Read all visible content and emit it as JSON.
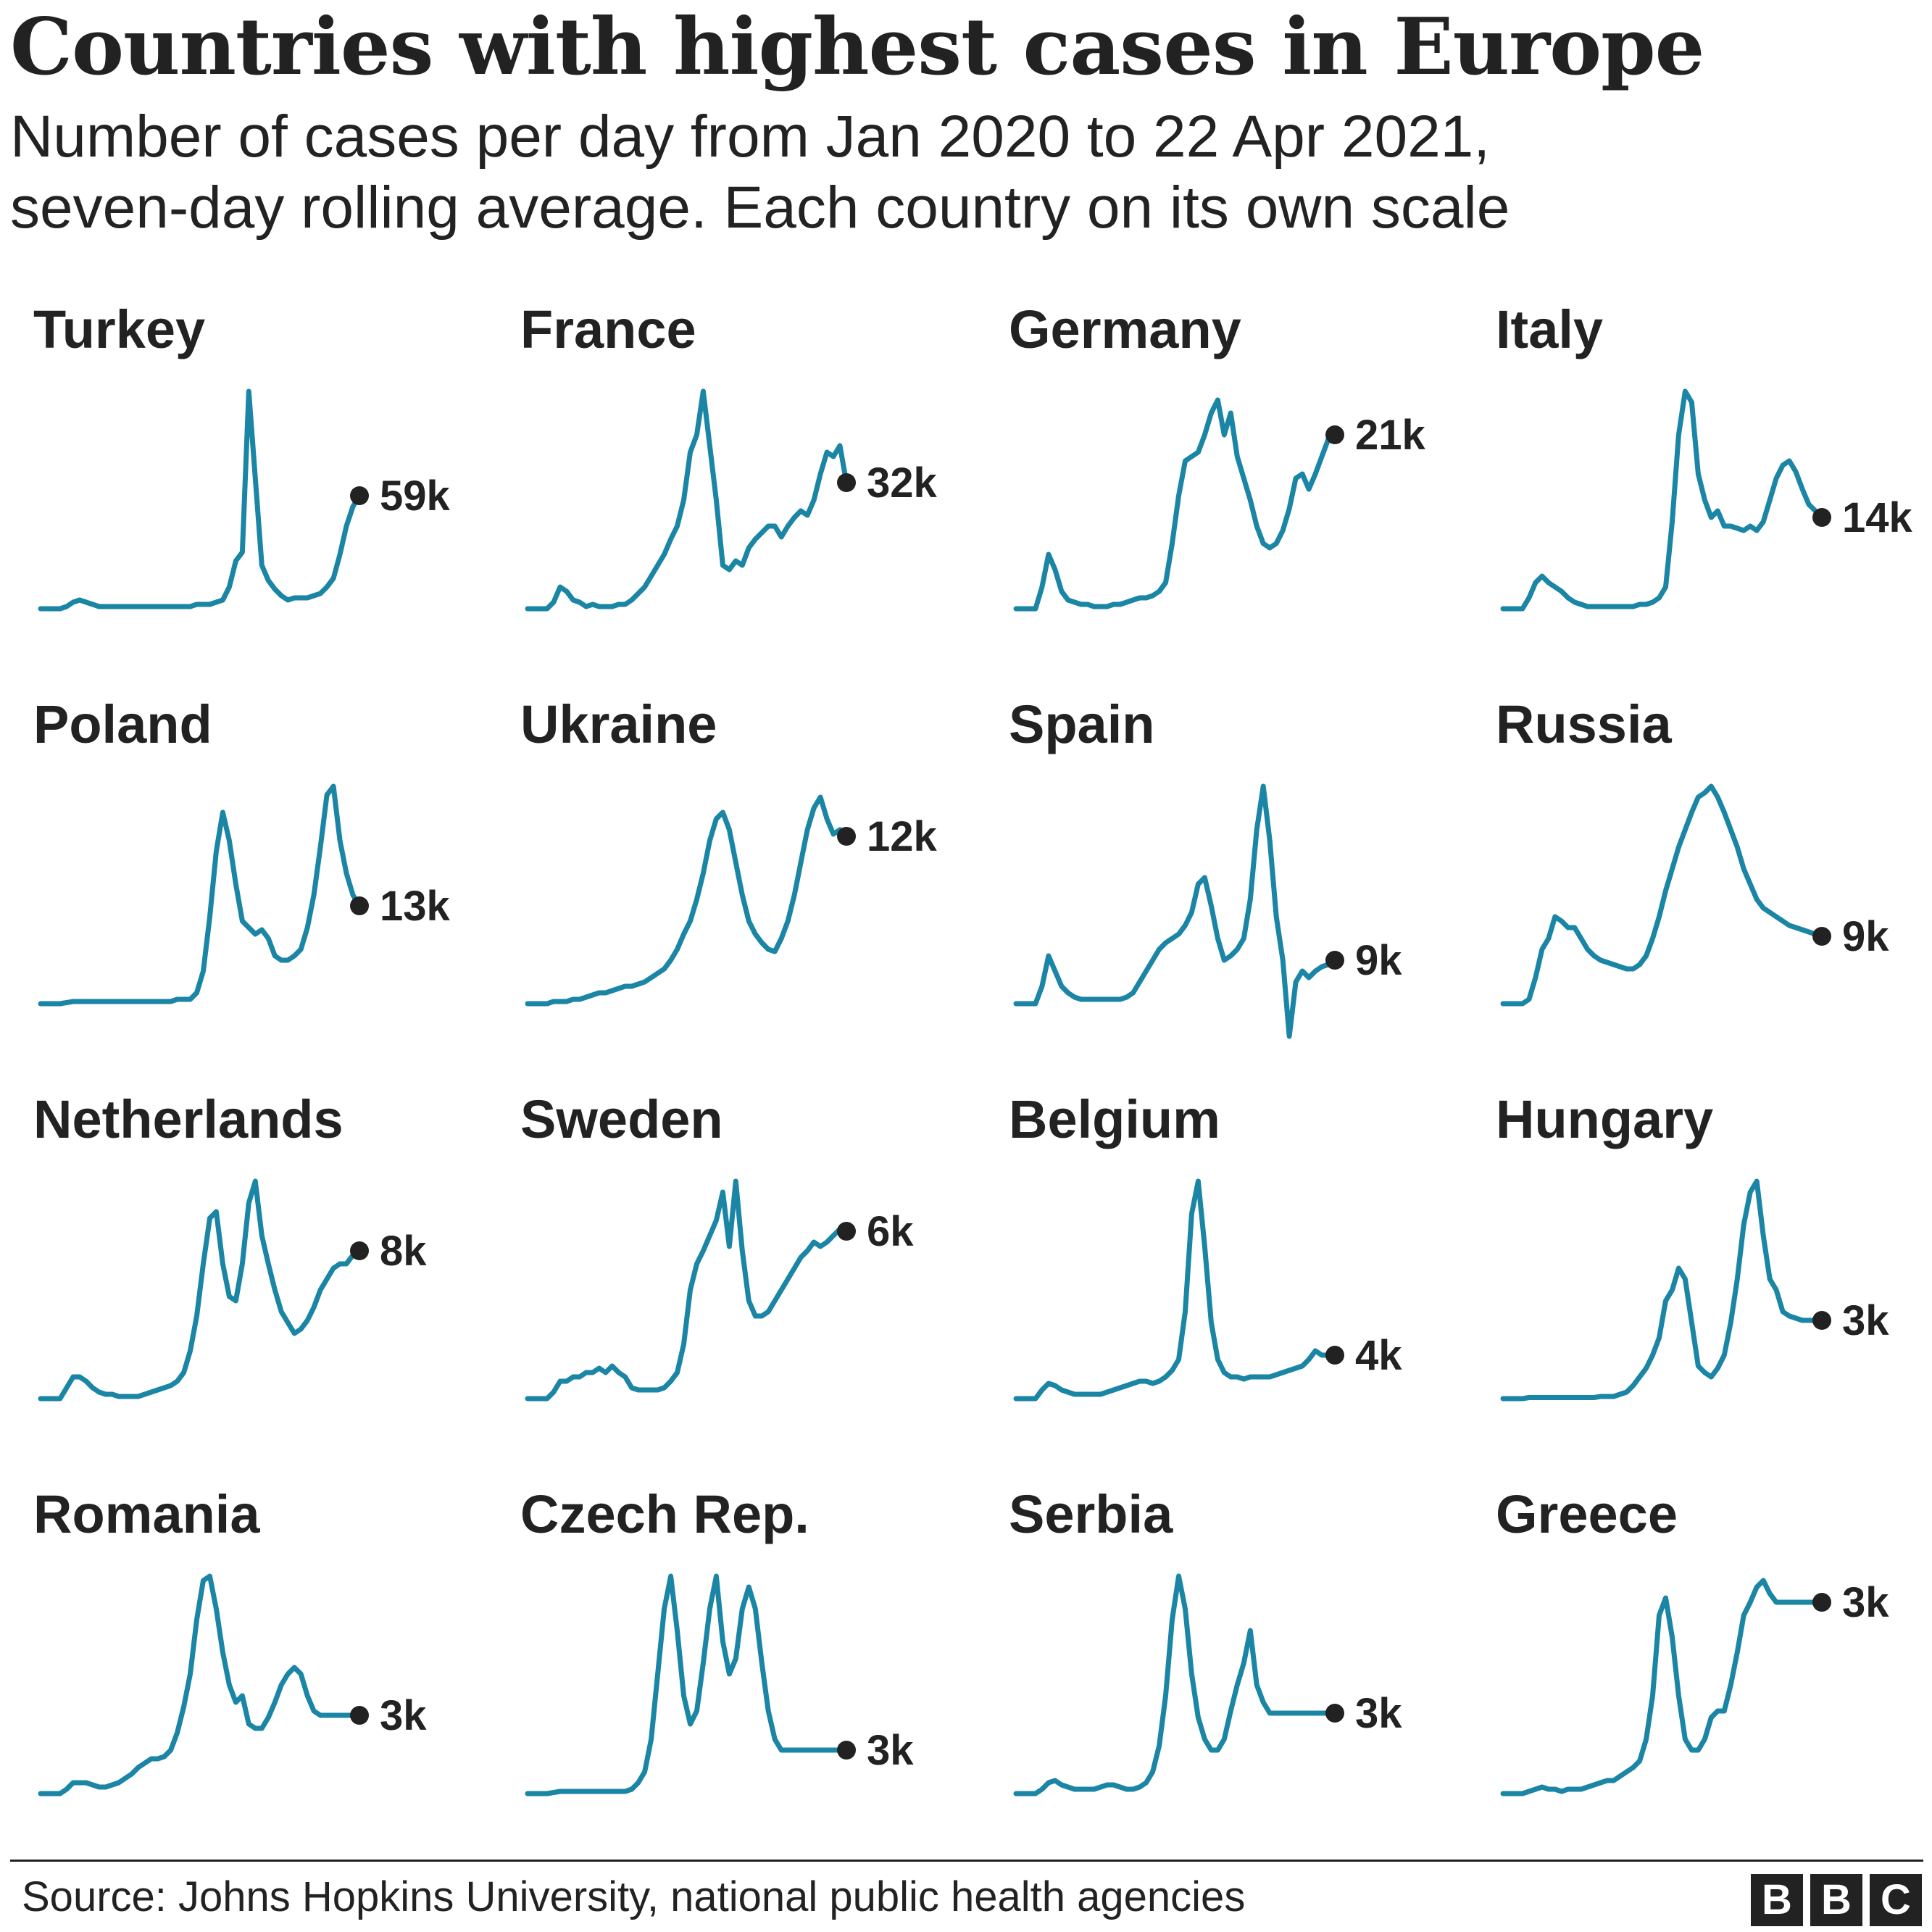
{
  "header": {
    "title": "Countries with highest cases in Europe",
    "subtitle_line1": "Number of cases per day from Jan 2020 to 22 Apr 2021,",
    "subtitle_line2": "seven-day rolling average. Each country on its own scale"
  },
  "footer": {
    "source": "Source: Johns Hopkins University, national public health agencies",
    "logo_letters": [
      "B",
      "B",
      "C"
    ]
  },
  "colors": {
    "line": "#1a85a5",
    "dot": "#222222",
    "text": "#222222",
    "background": "#ffffff"
  },
  "chart_data": {
    "type": "line",
    "title": "Countries with highest cases in Europe",
    "period": "Jan 2020 to 22 Apr 2021",
    "measure": "Number of cases per day, seven-day rolling average",
    "scale": "independent y-scale per country (values shown normalized to each country's peak)",
    "panels": [
      {
        "country": "Turkey",
        "latest_label": "59k",
        "peak_label": "",
        "values": [
          0,
          0,
          0,
          0,
          0.01,
          0.03,
          0.04,
          0.03,
          0.02,
          0.01,
          0.01,
          0.01,
          0.01,
          0.01,
          0.01,
          0.01,
          0.01,
          0.01,
          0.01,
          0.01,
          0.01,
          0.01,
          0.01,
          0.01,
          0.02,
          0.02,
          0.02,
          0.03,
          0.04,
          0.1,
          0.22,
          0.26,
          1.0,
          0.6,
          0.2,
          0.13,
          0.09,
          0.06,
          0.04,
          0.05,
          0.05,
          0.05,
          0.06,
          0.07,
          0.1,
          0.14,
          0.25,
          0.38,
          0.47,
          0.52
        ]
      },
      {
        "country": "France",
        "latest_label": "32k",
        "values": [
          0,
          0,
          0,
          0,
          0.03,
          0.1,
          0.08,
          0.04,
          0.03,
          0.01,
          0.02,
          0.01,
          0.01,
          0.01,
          0.02,
          0.02,
          0.04,
          0.07,
          0.1,
          0.15,
          0.2,
          0.25,
          0.32,
          0.38,
          0.5,
          0.72,
          0.8,
          1.0,
          0.75,
          0.5,
          0.2,
          0.18,
          0.22,
          0.2,
          0.28,
          0.32,
          0.35,
          0.38,
          0.38,
          0.33,
          0.38,
          0.42,
          0.45,
          0.43,
          0.5,
          0.62,
          0.72,
          0.7,
          0.75,
          0.58
        ]
      },
      {
        "country": "Germany",
        "latest_label": "21k",
        "values": [
          0,
          0,
          0,
          0,
          0.1,
          0.25,
          0.18,
          0.08,
          0.04,
          0.03,
          0.02,
          0.02,
          0.01,
          0.01,
          0.01,
          0.02,
          0.02,
          0.03,
          0.04,
          0.05,
          0.05,
          0.06,
          0.08,
          0.12,
          0.3,
          0.52,
          0.68,
          0.7,
          0.72,
          0.8,
          0.9,
          0.96,
          0.8,
          0.9,
          0.7,
          0.6,
          0.5,
          0.38,
          0.3,
          0.28,
          0.3,
          0.36,
          0.46,
          0.6,
          0.62,
          0.55,
          0.62,
          0.7,
          0.78,
          0.8
        ]
      },
      {
        "country": "Italy",
        "latest_label": "14k",
        "values": [
          0,
          0,
          0,
          0,
          0.05,
          0.12,
          0.15,
          0.12,
          0.1,
          0.08,
          0.05,
          0.03,
          0.02,
          0.01,
          0.01,
          0.01,
          0.01,
          0.01,
          0.01,
          0.01,
          0.01,
          0.02,
          0.02,
          0.03,
          0.05,
          0.1,
          0.4,
          0.8,
          1.0,
          0.95,
          0.62,
          0.5,
          0.42,
          0.45,
          0.38,
          0.38,
          0.37,
          0.36,
          0.38,
          0.36,
          0.4,
          0.5,
          0.6,
          0.66,
          0.68,
          0.63,
          0.55,
          0.48,
          0.45,
          0.42
        ]
      },
      {
        "country": "Poland",
        "latest_label": "13k",
        "values": [
          0,
          0,
          0,
          0,
          0.005,
          0.01,
          0.01,
          0.01,
          0.01,
          0.01,
          0.01,
          0.01,
          0.01,
          0.01,
          0.01,
          0.01,
          0.01,
          0.01,
          0.01,
          0.01,
          0.01,
          0.02,
          0.02,
          0.02,
          0.05,
          0.15,
          0.4,
          0.7,
          0.88,
          0.75,
          0.55,
          0.38,
          0.35,
          0.32,
          0.34,
          0.3,
          0.22,
          0.2,
          0.2,
          0.22,
          0.25,
          0.35,
          0.5,
          0.72,
          0.96,
          1.0,
          0.75,
          0.6,
          0.5,
          0.45
        ]
      },
      {
        "country": "Ukraine",
        "latest_label": "12k",
        "values": [
          0,
          0,
          0,
          0,
          0.01,
          0.01,
          0.01,
          0.02,
          0.02,
          0.03,
          0.04,
          0.05,
          0.05,
          0.06,
          0.07,
          0.08,
          0.08,
          0.09,
          0.1,
          0.12,
          0.14,
          0.16,
          0.2,
          0.25,
          0.32,
          0.38,
          0.48,
          0.6,
          0.75,
          0.85,
          0.88,
          0.8,
          0.65,
          0.5,
          0.38,
          0.32,
          0.28,
          0.25,
          0.24,
          0.3,
          0.38,
          0.5,
          0.65,
          0.8,
          0.9,
          0.95,
          0.85,
          0.78,
          0.8,
          0.77
        ]
      },
      {
        "country": "Spain",
        "latest_label": "9k",
        "values": [
          0,
          0,
          0,
          0,
          0.08,
          0.22,
          0.15,
          0.08,
          0.05,
          0.03,
          0.02,
          0.02,
          0.02,
          0.02,
          0.02,
          0.02,
          0.02,
          0.03,
          0.05,
          0.1,
          0.15,
          0.2,
          0.25,
          0.28,
          0.3,
          0.32,
          0.36,
          0.42,
          0.55,
          0.58,
          0.45,
          0.3,
          0.2,
          0.22,
          0.25,
          0.3,
          0.48,
          0.8,
          1.0,
          0.75,
          0.4,
          0.2,
          -0.15,
          0.1,
          0.15,
          0.12,
          0.15,
          0.17,
          0.18,
          0.2
        ]
      },
      {
        "country": "Russia",
        "latest_label": "9k",
        "values": [
          0,
          0,
          0,
          0,
          0.02,
          0.12,
          0.25,
          0.3,
          0.4,
          0.38,
          0.35,
          0.35,
          0.3,
          0.25,
          0.22,
          0.2,
          0.19,
          0.18,
          0.17,
          0.16,
          0.16,
          0.18,
          0.22,
          0.3,
          0.4,
          0.52,
          0.62,
          0.72,
          0.8,
          0.88,
          0.95,
          0.97,
          1.0,
          0.95,
          0.88,
          0.8,
          0.72,
          0.62,
          0.55,
          0.48,
          0.44,
          0.42,
          0.4,
          0.38,
          0.36,
          0.35,
          0.34,
          0.33,
          0.32,
          0.31
        ]
      },
      {
        "country": "Netherlands",
        "latest_label": "8k",
        "values": [
          0,
          0,
          0,
          0,
          0.05,
          0.1,
          0.1,
          0.08,
          0.05,
          0.03,
          0.02,
          0.02,
          0.01,
          0.01,
          0.01,
          0.01,
          0.02,
          0.03,
          0.04,
          0.05,
          0.06,
          0.08,
          0.12,
          0.22,
          0.38,
          0.62,
          0.83,
          0.86,
          0.62,
          0.47,
          0.45,
          0.62,
          0.9,
          1.0,
          0.75,
          0.62,
          0.5,
          0.4,
          0.35,
          0.3,
          0.32,
          0.36,
          0.42,
          0.5,
          0.55,
          0.6,
          0.62,
          0.62,
          0.66,
          0.68
        ]
      },
      {
        "country": "Sweden",
        "latest_label": "6k",
        "values": [
          0,
          0,
          0,
          0,
          0.03,
          0.08,
          0.08,
          0.1,
          0.1,
          0.12,
          0.12,
          0.14,
          0.12,
          0.15,
          0.12,
          0.1,
          0.05,
          0.04,
          0.04,
          0.04,
          0.04,
          0.05,
          0.08,
          0.12,
          0.25,
          0.5,
          0.62,
          0.68,
          0.75,
          0.82,
          0.95,
          0.7,
          1.0,
          0.68,
          0.45,
          0.38,
          0.38,
          0.4,
          0.45,
          0.5,
          0.55,
          0.6,
          0.65,
          0.68,
          0.72,
          0.7,
          0.72,
          0.75,
          0.78,
          0.77
        ]
      },
      {
        "country": "Belgium",
        "latest_label": "4k",
        "values": [
          0,
          0,
          0,
          0,
          0.04,
          0.07,
          0.06,
          0.04,
          0.03,
          0.02,
          0.02,
          0.02,
          0.02,
          0.02,
          0.03,
          0.04,
          0.05,
          0.06,
          0.07,
          0.08,
          0.08,
          0.07,
          0.08,
          0.1,
          0.13,
          0.18,
          0.4,
          0.85,
          1.0,
          0.7,
          0.35,
          0.18,
          0.12,
          0.1,
          0.1,
          0.09,
          0.1,
          0.1,
          0.1,
          0.1,
          0.11,
          0.12,
          0.13,
          0.14,
          0.15,
          0.18,
          0.22,
          0.2,
          0.2,
          0.2
        ]
      },
      {
        "country": "Hungary",
        "latest_label": "3k",
        "values": [
          0,
          0,
          0,
          0,
          0.005,
          0.005,
          0.005,
          0.005,
          0.005,
          0.005,
          0.005,
          0.005,
          0.005,
          0.005,
          0.005,
          0.01,
          0.01,
          0.01,
          0.02,
          0.03,
          0.06,
          0.1,
          0.14,
          0.2,
          0.28,
          0.45,
          0.5,
          0.6,
          0.55,
          0.35,
          0.15,
          0.12,
          0.1,
          0.14,
          0.2,
          0.35,
          0.55,
          0.8,
          0.95,
          1.0,
          0.75,
          0.55,
          0.5,
          0.4,
          0.38,
          0.37,
          0.36,
          0.36,
          0.36,
          0.36
        ]
      },
      {
        "country": "Romania",
        "latest_label": "3k",
        "values": [
          0,
          0,
          0,
          0,
          0.02,
          0.05,
          0.05,
          0.05,
          0.04,
          0.03,
          0.03,
          0.04,
          0.05,
          0.07,
          0.09,
          0.12,
          0.14,
          0.16,
          0.16,
          0.17,
          0.2,
          0.28,
          0.4,
          0.55,
          0.8,
          0.98,
          1.0,
          0.85,
          0.65,
          0.5,
          0.42,
          0.45,
          0.32,
          0.3,
          0.3,
          0.35,
          0.42,
          0.5,
          0.55,
          0.58,
          0.55,
          0.45,
          0.38,
          0.36,
          0.36,
          0.36,
          0.36,
          0.36,
          0.36,
          0.36
        ]
      },
      {
        "country": "Czech Rep.",
        "latest_label": "3k",
        "values": [
          0,
          0,
          0,
          0,
          0.005,
          0.01,
          0.01,
          0.01,
          0.01,
          0.01,
          0.01,
          0.01,
          0.01,
          0.01,
          0.01,
          0.01,
          0.02,
          0.05,
          0.1,
          0.25,
          0.55,
          0.85,
          1.0,
          0.75,
          0.45,
          0.32,
          0.38,
          0.6,
          0.85,
          1.0,
          0.7,
          0.55,
          0.62,
          0.85,
          0.95,
          0.85,
          0.6,
          0.38,
          0.25,
          0.2,
          0.2,
          0.2,
          0.2,
          0.2,
          0.2,
          0.2,
          0.2,
          0.2,
          0.2,
          0.2
        ]
      },
      {
        "country": "Serbia",
        "latest_label": "3k",
        "values": [
          0,
          0,
          0,
          0,
          0.02,
          0.05,
          0.06,
          0.04,
          0.03,
          0.02,
          0.02,
          0.02,
          0.02,
          0.03,
          0.04,
          0.04,
          0.03,
          0.02,
          0.02,
          0.03,
          0.05,
          0.1,
          0.22,
          0.45,
          0.8,
          1.0,
          0.85,
          0.55,
          0.35,
          0.25,
          0.2,
          0.2,
          0.25,
          0.38,
          0.5,
          0.6,
          0.75,
          0.5,
          0.42,
          0.37,
          0.37,
          0.37,
          0.37,
          0.37,
          0.37,
          0.37,
          0.37,
          0.37,
          0.37,
          0.37
        ]
      },
      {
        "country": "Greece",
        "latest_label": "3k",
        "values": [
          0,
          0,
          0,
          0,
          0.01,
          0.02,
          0.03,
          0.02,
          0.02,
          0.01,
          0.02,
          0.02,
          0.02,
          0.03,
          0.04,
          0.05,
          0.06,
          0.06,
          0.08,
          0.1,
          0.12,
          0.15,
          0.25,
          0.45,
          0.82,
          0.9,
          0.72,
          0.45,
          0.25,
          0.2,
          0.2,
          0.25,
          0.35,
          0.38,
          0.38,
          0.5,
          0.65,
          0.82,
          0.88,
          0.95,
          0.98,
          0.92,
          0.88,
          0.88,
          0.88,
          0.88,
          0.88,
          0.88,
          0.88,
          0.88
        ]
      }
    ]
  }
}
